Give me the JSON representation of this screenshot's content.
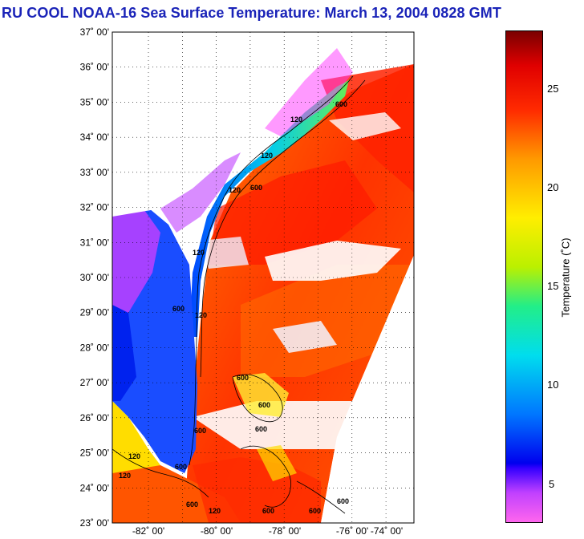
{
  "title": "RU COOL  NOAA-16  Sea Surface Temperature:  March 13, 2004 0828 GMT",
  "map": {
    "lat_labels": [
      "37˚ 00'",
      "36˚ 00'",
      "35˚ 00'",
      "34˚ 00'",
      "33˚ 00'",
      "32˚ 00'",
      "31˚ 00'",
      "30˚ 00'",
      "29˚ 00'",
      "28˚ 00'",
      "27˚ 00'",
      "26˚ 00'",
      "25˚ 00'",
      "24˚ 00'",
      "23˚ 00'"
    ],
    "lon_labels": [
      "-82˚ 00'",
      "-80˚ 00'",
      "-78˚ 00'",
      "-76˚ 00'",
      "-74˚ 00'"
    ],
    "contour_labels": [
      "600",
      "120",
      "120",
      "120",
      "600",
      "120",
      "600",
      "120",
      "600",
      "600",
      "600",
      "600",
      "600",
      "120",
      "120",
      "600",
      "600",
      "600",
      "600",
      "120"
    ]
  },
  "colorbar": {
    "title": "Temperature (˚C)",
    "ticks": [
      "25",
      "20",
      "15",
      "10",
      "5"
    ]
  },
  "colors": {
    "title": "#1a23b8",
    "cold": "#ff44dd",
    "warm": "#ff2200"
  }
}
